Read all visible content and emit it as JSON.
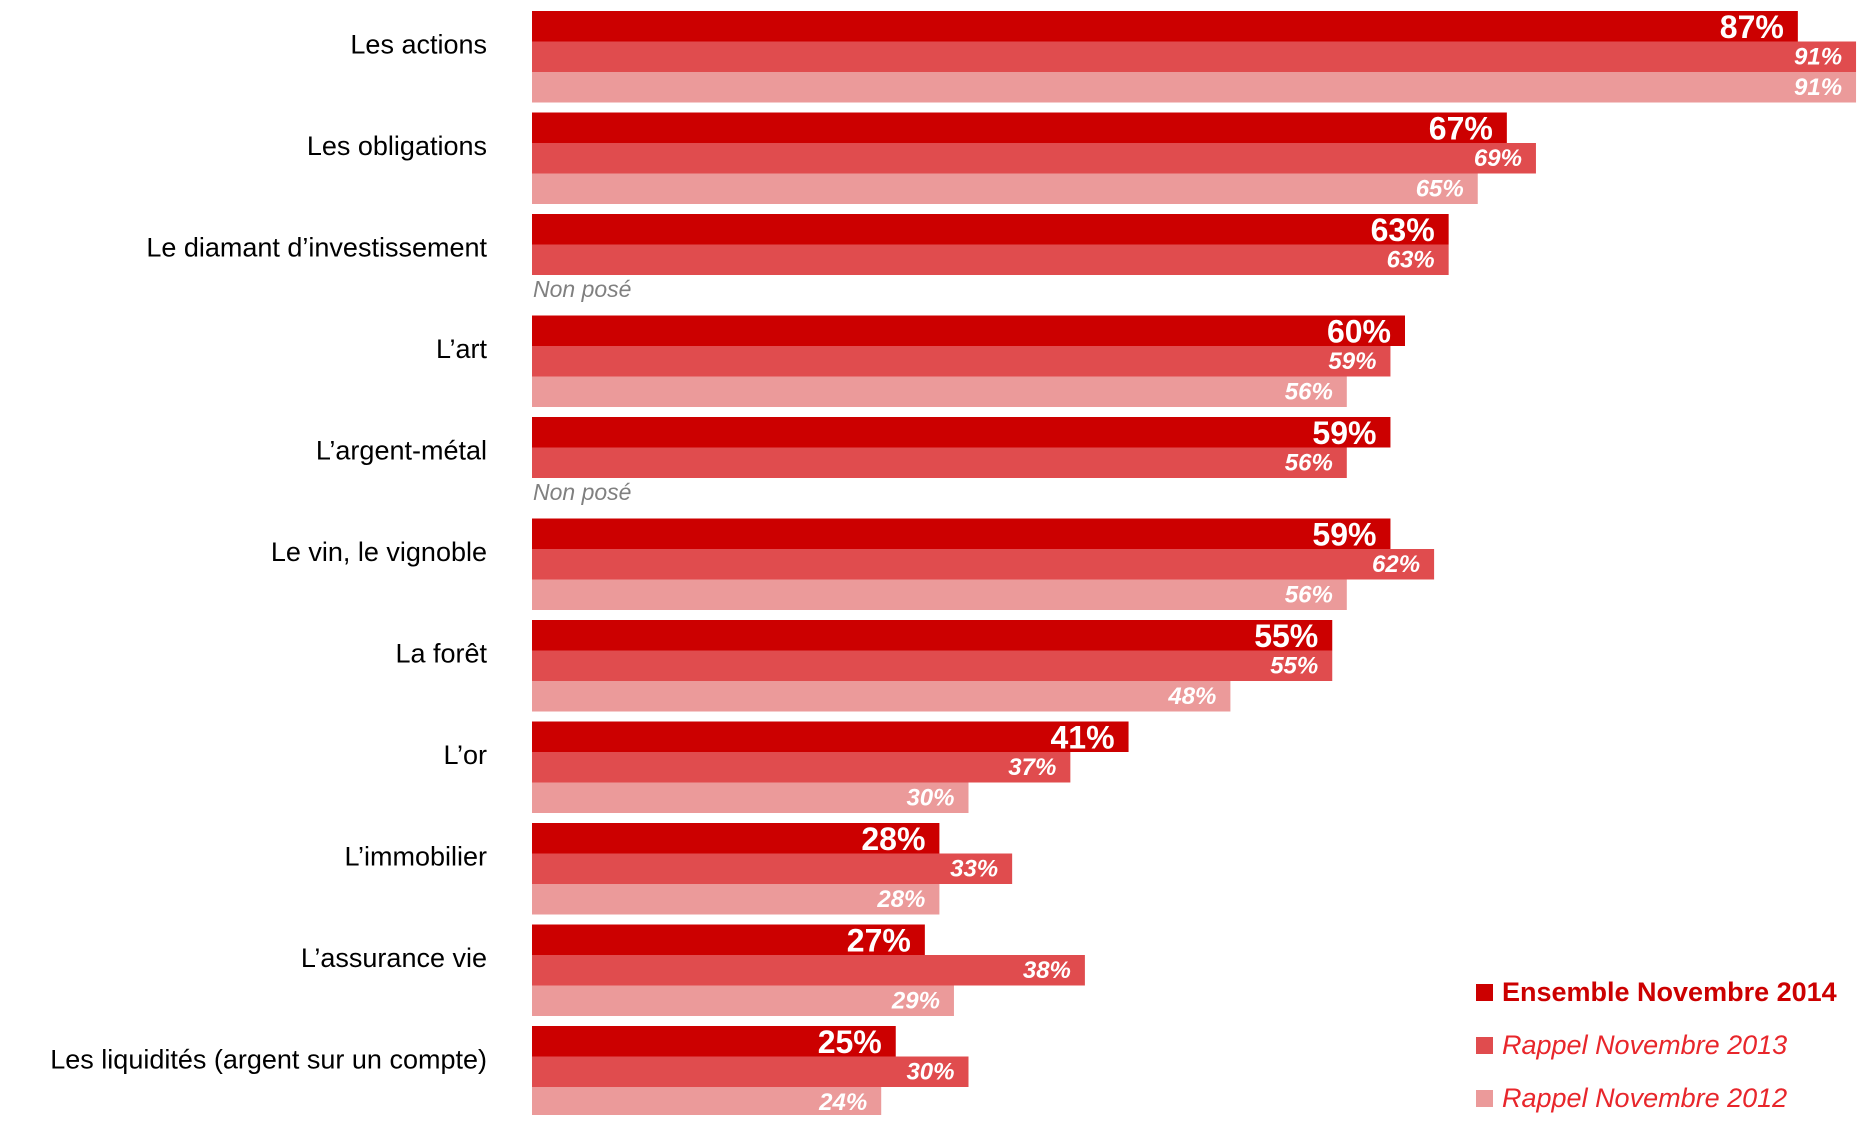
{
  "chart_data": {
    "type": "bar",
    "orientation": "horizontal",
    "title": "",
    "xlabel": "",
    "ylabel": "",
    "xlim": [
      0,
      91
    ],
    "grid": false,
    "legend_placement": "bottom-right",
    "categories": [
      "Les actions",
      "Les obligations",
      "Le diamant d’investissement",
      "L’art",
      "L’argent-métal",
      "Le vin, le vignoble",
      "La forêt",
      "L’or",
      "L’immobilier",
      "L’assurance vie",
      "Les liquidités (argent sur un compte)"
    ],
    "series": [
      {
        "name": "Ensemble Novembre 2014",
        "color": "#cc0000",
        "values": [
          87,
          67,
          63,
          60,
          59,
          59,
          55,
          41,
          28,
          27,
          25
        ],
        "labels": [
          "87%",
          "67%",
          "63%",
          "60%",
          "59%",
          "59%",
          "55%",
          "41%",
          "28%",
          "27%",
          "25%"
        ]
      },
      {
        "name": "Rappel Novembre 2013",
        "color": "#e04c4e",
        "values": [
          91,
          69,
          63,
          59,
          56,
          62,
          55,
          37,
          33,
          38,
          30
        ],
        "labels": [
          "91%",
          "69%",
          "63%",
          "59%",
          "56%",
          "62%",
          "55%",
          "37%",
          "33%",
          "38%",
          "30%"
        ]
      },
      {
        "name": "Rappel Novembre 2012",
        "color": "#eb9a9a",
        "values": [
          91,
          65,
          null,
          56,
          null,
          56,
          48,
          30,
          28,
          29,
          24
        ],
        "labels": [
          "91%",
          "65%",
          null,
          "56%",
          null,
          "56%",
          "48%",
          "30%",
          "28%",
          "29%",
          "24%"
        ]
      }
    ],
    "missing_label": "Non posé",
    "legend": [
      {
        "label": "Ensemble Novembre 2014",
        "color": "#cc0000",
        "style": "bold",
        "text_color": "#cc0000"
      },
      {
        "label": "Rappel Novembre 2013",
        "color": "#e04c4e",
        "style": "italic",
        "text_color": "#e8262b"
      },
      {
        "label": "Rappel Novembre 2012",
        "color": "#eb9a9a",
        "style": "italic",
        "text_color": "#e8262b"
      }
    ]
  }
}
